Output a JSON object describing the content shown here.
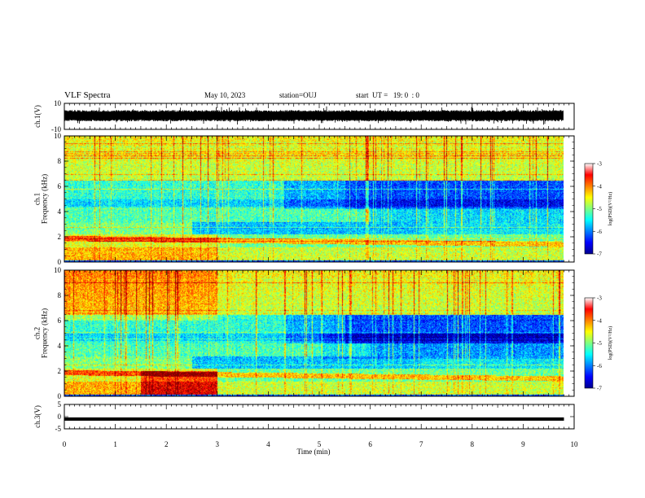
{
  "header": {
    "title": "VLF Spectra",
    "date": "May 10, 2023",
    "station": "station=OUJ",
    "start": "start  UT =   19: 0  : 0"
  },
  "chart_data": [
    {
      "type": "line",
      "panel": "waveform-ch1",
      "ylabel": "ch.1(V)",
      "ylim": [
        -10,
        10
      ],
      "y_ticks": [
        "10",
        "-10"
      ],
      "x": [
        0,
        1,
        2,
        3,
        4,
        5,
        6,
        7,
        8,
        9,
        9.8
      ],
      "series": [
        {
          "values_upper": [
            3.5,
            3.8,
            3.6,
            4.0,
            3.7,
            3.6,
            3.8,
            3.5,
            3.6,
            3.7,
            3.6
          ],
          "values_lower": [
            -2.5,
            -2.8,
            -2.6,
            -3.0,
            -2.7,
            -2.6,
            -2.9,
            -2.6,
            -2.7,
            -2.8,
            -2.7
          ]
        }
      ]
    },
    {
      "type": "heatmap",
      "panel": "spectrogram-ch1",
      "ylabel": "ch.1\nFrequency (kHz)",
      "ylim": [
        0,
        10
      ],
      "y_ticks": [
        "0",
        "2",
        "4",
        "6",
        "8",
        "10"
      ],
      "colorbar": {
        "label": "log(PSD)(V²/Hz)",
        "range": [
          -7,
          -3
        ],
        "ticks": [
          "-3",
          "-4",
          "-5",
          "-6",
          "-7"
        ]
      }
    },
    {
      "type": "heatmap",
      "panel": "spectrogram-ch2",
      "ylabel": "ch.2\nFrequency (kHz)",
      "ylim": [
        0,
        10
      ],
      "y_ticks": [
        "0",
        "2",
        "4",
        "6",
        "8",
        "10"
      ],
      "colorbar": {
        "label": "log(PSD)(V²/Hz)",
        "range": [
          -7,
          -3
        ],
        "ticks": [
          "-3",
          "-4",
          "-5",
          "-6",
          "-7"
        ]
      }
    },
    {
      "type": "line",
      "panel": "waveform-ch3",
      "ylabel": "ch.3(V)",
      "ylim": [
        -5,
        5
      ],
      "y_ticks": [
        "5",
        "0",
        "-5"
      ],
      "x": [
        0,
        9.8
      ],
      "series": [
        {
          "values": [
            -1,
            -1
          ]
        }
      ]
    }
  ],
  "xaxis": {
    "xlabel": "Time (min)",
    "xlim": [
      0,
      10
    ],
    "ticks": [
      "0",
      "1",
      "2",
      "3",
      "4",
      "5",
      "6",
      "7",
      "8",
      "9",
      "10"
    ]
  },
  "colors": {
    "jet": [
      "#00008f",
      "#0000ff",
      "#0080ff",
      "#00ffff",
      "#80ff80",
      "#ffff00",
      "#ff8000",
      "#ff0000",
      "#800000"
    ],
    "axis": "#000000",
    "trace": "#000000"
  }
}
